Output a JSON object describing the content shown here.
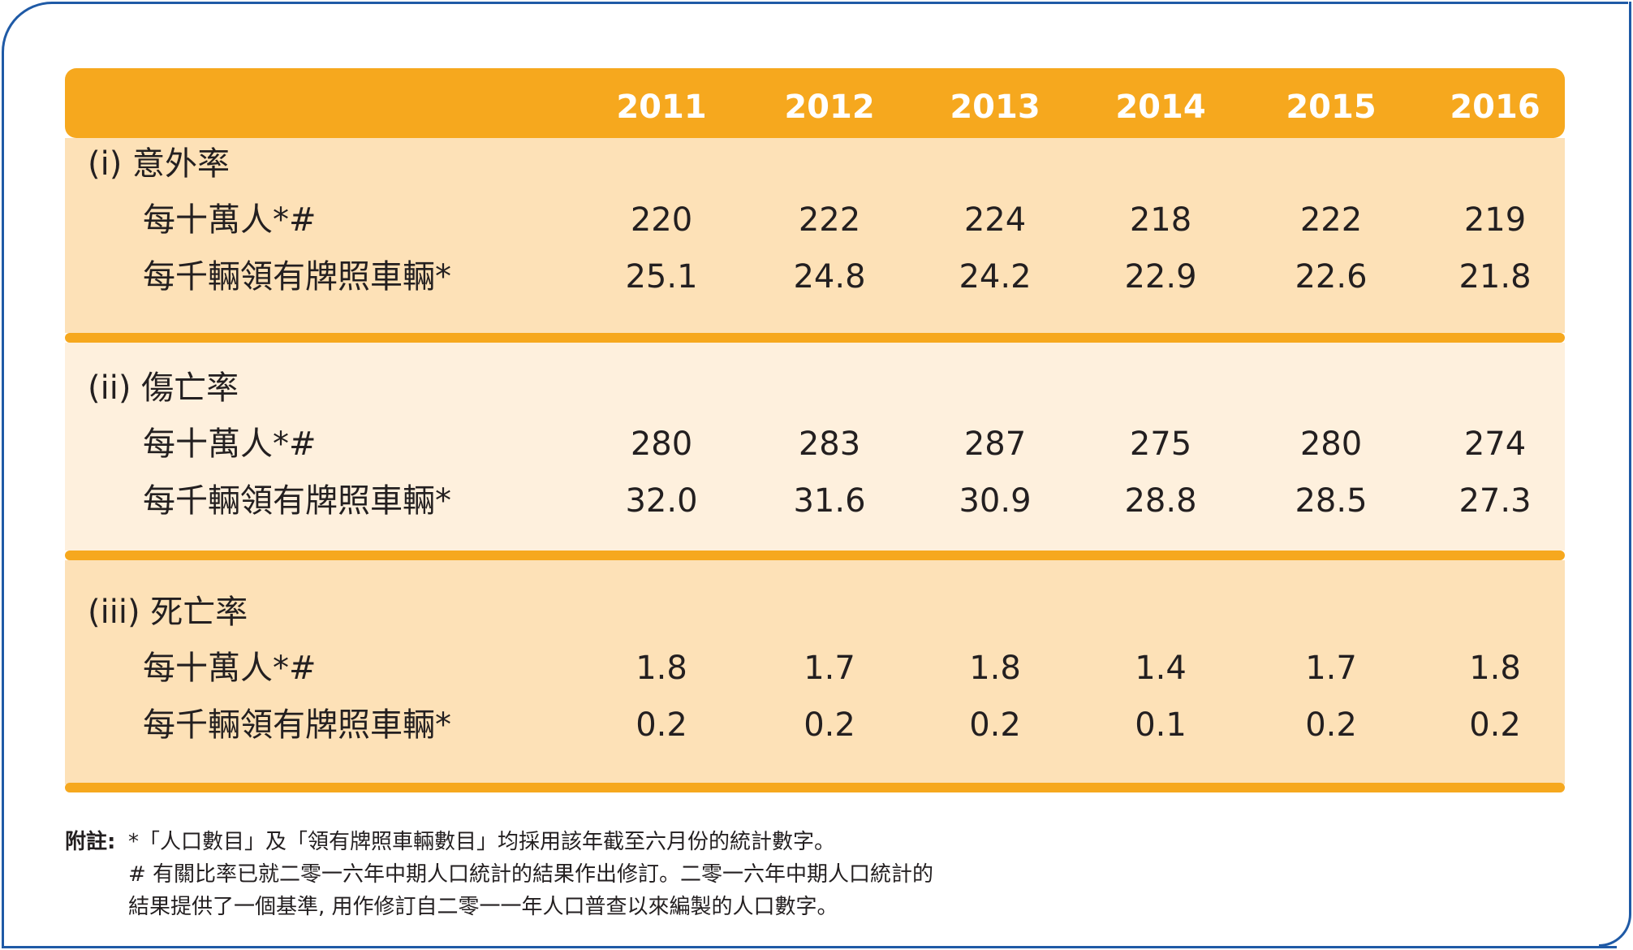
{
  "years": [
    "2011",
    "2012",
    "2013",
    "2014",
    "2015",
    "2016"
  ],
  "sections": [
    {
      "title": "(i)   意外率",
      "rows": [
        {
          "label": "每十萬人*#",
          "values": [
            "220",
            "222",
            "224",
            "218",
            "222",
            "219"
          ]
        },
        {
          "label": "每千輛領有牌照車輛*",
          "values": [
            "25.1",
            "24.8",
            "24.2",
            "22.9",
            "22.6",
            "21.8"
          ]
        }
      ]
    },
    {
      "title": "(ii) 傷亡率",
      "rows": [
        {
          "label": "每十萬人*#",
          "values": [
            "280",
            "283",
            "287",
            "275",
            "280",
            "274"
          ]
        },
        {
          "label": "每千輛領有牌照車輛*",
          "values": [
            "32.0",
            "31.6",
            "30.9",
            "28.8",
            "28.5",
            "27.3"
          ]
        }
      ]
    },
    {
      "title": "(iii) 死亡率",
      "rows": [
        {
          "label": "每十萬人*#",
          "values": [
            "1.8",
            "1.7",
            "1.8",
            "1.4",
            "1.7",
            "1.8"
          ]
        },
        {
          "label": "每千輛領有牌照車輛*",
          "values": [
            "0.2",
            "0.2",
            "0.2",
            "0.1",
            "0.2",
            "0.2"
          ]
        }
      ]
    }
  ],
  "notes": {
    "head": "附註:",
    "line1": "*「人口數目」及「領有牌照車輛數目」均採用該年截至六月份的統計數字。",
    "line2": "# 有關比率已就二零一六年中期人口統計的結果作出修訂。二零一六年中期人口統計的",
    "line3": "結果提供了一個基準, 用作修訂自二零一一年人口普查以來編製的人口數字。"
  },
  "colors": {
    "accent": "#f6a81e",
    "band": "#fde1b7",
    "band_light": "#fef0dd",
    "frame": "#1f5aa6"
  }
}
